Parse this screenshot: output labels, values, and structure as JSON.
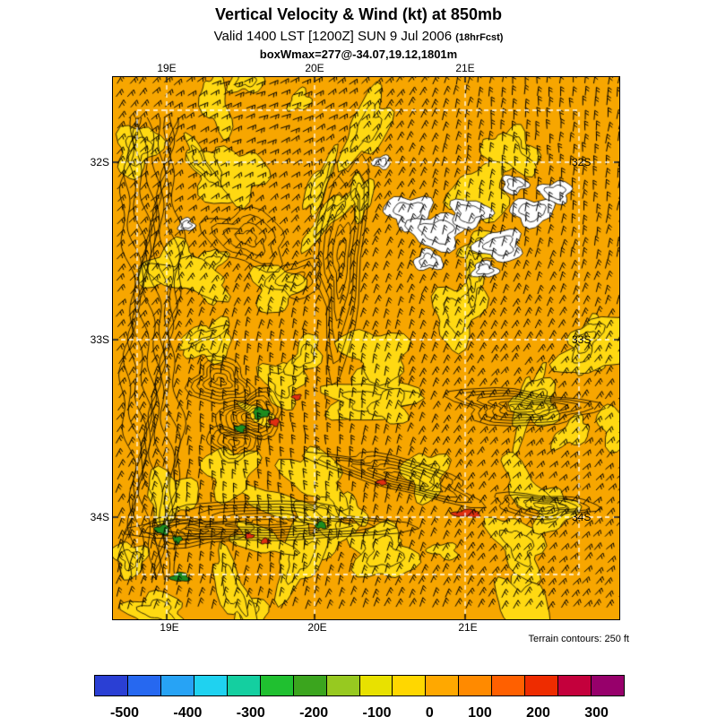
{
  "header": {
    "title": "Vertical Velocity & Wind (kt) at 850mb",
    "valid_line": "Valid 1400 LST [1200Z] SUN 9 Jul 2006",
    "fcst_note": "(18hrFcst)",
    "info_line": "boxWmax=277@-34.07,19.12,1801m"
  },
  "map": {
    "x_ticks": [
      "19E",
      "20E",
      "21E"
    ],
    "y_ticks": [
      "32S",
      "33S",
      "34S"
    ],
    "terrain_note": "Terrain contours: 250 ft",
    "colors": {
      "base": "#F7A600",
      "yellow": "#FFD912",
      "cloud_white": "#FFFFFF",
      "contour": "#000000",
      "green": "#1E8C1E",
      "red": "#E03010",
      "grid": "#FFFFFF"
    }
  },
  "colorbar": {
    "segments": [
      "#2A3FD4",
      "#2668F0",
      "#27A3F5",
      "#1FD2F0",
      "#14CFA0",
      "#20C030",
      "#3BA51E",
      "#97C920",
      "#E8E100",
      "#FFD700",
      "#FFA800",
      "#FF8A00",
      "#FF6000",
      "#EE2C00",
      "#C4003C",
      "#97006B"
    ],
    "labels": [
      "-500",
      "-400",
      "-300",
      "-200",
      "-100",
      "0",
      "100",
      "200",
      "300"
    ]
  },
  "chart_data": {
    "type": "heatmap",
    "title": "Vertical Velocity & Wind (kt) at 850mb",
    "subtitle": "Valid 1400 LST [1200Z] SUN 9 Jul 2006 (18hrFcst)",
    "annotation": "boxWmax=277@-34.07,19.12,1801m",
    "x_tick_labels": [
      "19E",
      "20E",
      "21E"
    ],
    "y_tick_labels": [
      "32S",
      "33S",
      "34S"
    ],
    "colorbar": {
      "tick_labels": [
        "-500",
        "-400",
        "-300",
        "-200",
        "-100",
        "0",
        "100",
        "200",
        "300"
      ],
      "colors": [
        "#2A3FD4",
        "#2668F0",
        "#27A3F5",
        "#1FD2F0",
        "#14CFA0",
        "#20C030",
        "#3BA51E",
        "#97C920",
        "#E8E100",
        "#FFD700",
        "#FFA800",
        "#FF8A00",
        "#FF6000",
        "#EE2C00",
        "#C4003C",
        "#97006B"
      ],
      "position": "bottom"
    },
    "overlays": [
      "wind barbs (kt)",
      "filled vertical-velocity contours",
      "terrain contours every 250 ft",
      "dashed white lat/lon grid"
    ],
    "notes": "Terrain contours: 250 ft"
  }
}
